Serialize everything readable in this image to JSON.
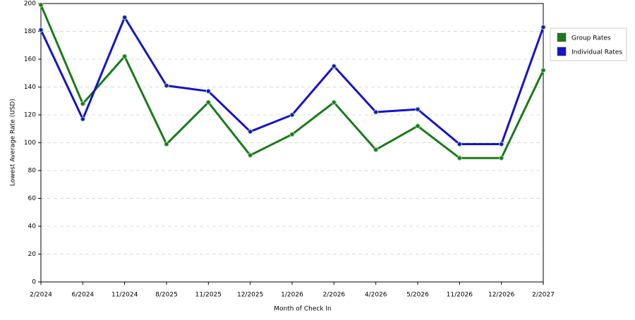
{
  "chart_data": {
    "type": "line",
    "x_label": "Month of Check In",
    "y_label": "Lowest Average Rate (USD)",
    "categories": [
      "2/2024",
      "6/2024",
      "11/2024",
      "8/2025",
      "11/2025",
      "12/2025",
      "1/2026",
      "2/2026",
      "4/2026",
      "5/2026",
      "11/2026",
      "12/2026",
      "2/2027"
    ],
    "series": [
      {
        "name": "Group Rates",
        "color": "#1a7a1a",
        "values": [
          199,
          128,
          162,
          99,
          129,
          91,
          106,
          129,
          95,
          112,
          89,
          89,
          152
        ]
      },
      {
        "name": "Individual Rates",
        "color": "#1414c8",
        "values": [
          181,
          117,
          190,
          141,
          137,
          108,
          120,
          155,
          122,
          124,
          99,
          99,
          183
        ]
      }
    ],
    "ylim": [
      0,
      200
    ],
    "yticks": [
      0,
      20,
      40,
      60,
      80,
      100,
      120,
      140,
      160,
      180,
      200
    ],
    "grid": true,
    "legend": "right"
  }
}
